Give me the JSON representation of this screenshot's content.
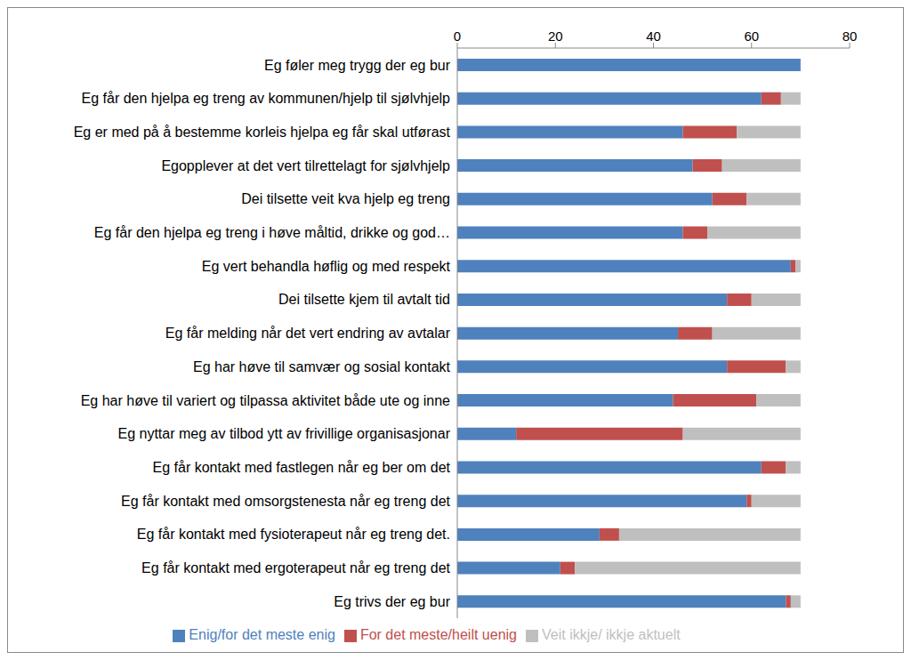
{
  "chart_data": {
    "type": "bar",
    "orientation": "horizontal",
    "stacked": true,
    "legend": "bottom",
    "grid": false,
    "categories": [
      "Eg føler meg trygg der eg bur",
      "Eg får den hjelpa eg treng av kommunen/hjelp til sjølvhjelp",
      "Eg er med på å bestemme korleis hjelpa eg får skal utførast",
      "Egopplever at det vert tilrettelagt for sjølvhjelp",
      "Dei tilsette veit kva hjelp eg treng",
      "Eg får den hjelpa eg treng i høve måltid, drikke og god…",
      "Eg vert behandla høflig og med respekt",
      "Dei tilsette kjem til avtalt tid",
      "Eg får melding når det vert endring av avtalar",
      "Eg  har høve til samvær og sosial kontakt",
      "Eg har høve til variert og tilpassa aktivitet både ute og inne",
      "Eg nyttar meg av tilbod ytt av frivillige organisasjonar",
      "Eg får kontakt med fastlegen når eg ber om det",
      "Eg får kontakt med omsorgstenesta når eg treng det",
      "Eg får kontakt med fysioterapeut når eg treng det.",
      "Eg får kontakt med ergoterapeut når eg treng det",
      "Eg trivs der eg bur"
    ],
    "series": [
      {
        "name": "Enig/for det meste enig",
        "color": "#4f81bd",
        "values": [
          70,
          62,
          46,
          48,
          52,
          46,
          68,
          55,
          45,
          55,
          44,
          12,
          62,
          59,
          29,
          21,
          67
        ]
      },
      {
        "name": "For det meste/heilt uenig",
        "color": "#c0504d",
        "values": [
          0,
          4,
          11,
          6,
          7,
          5,
          1,
          5,
          7,
          12,
          17,
          34,
          5,
          1,
          4,
          3,
          1
        ]
      },
      {
        "name": "Veit ikkje/ ikkje aktuelt",
        "color": "#bfbfbf",
        "values": [
          0,
          4,
          13,
          16,
          11,
          19,
          1,
          10,
          18,
          3,
          9,
          24,
          3,
          10,
          37,
          46,
          2
        ]
      }
    ],
    "xlim": [
      0,
      80
    ],
    "xticks": [
      0,
      20,
      40,
      60,
      80
    ]
  }
}
